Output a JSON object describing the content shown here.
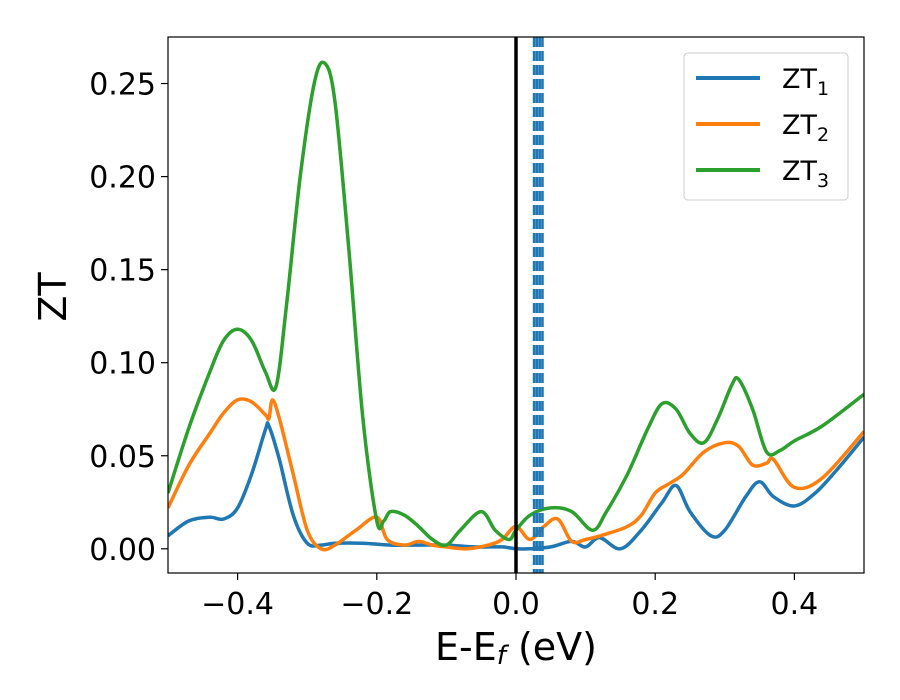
{
  "chart_data": {
    "type": "line",
    "xlabel": "E-E",
    "xlabel_sub": "f",
    "xlabel_unit": " (eV)",
    "ylabel": "ZT",
    "xlim": [
      -0.5,
      0.5
    ],
    "ylim": [
      -0.013,
      0.275
    ],
    "x_ticks": [
      -0.4,
      -0.2,
      0.0,
      0.2,
      0.4
    ],
    "x_tick_labels": [
      "−0.4",
      "−0.2",
      "0.0",
      "0.2",
      "0.4"
    ],
    "y_ticks": [
      0.0,
      0.05,
      0.1,
      0.15,
      0.2,
      0.25
    ],
    "y_tick_labels": [
      "0.00",
      "0.05",
      "0.10",
      "0.15",
      "0.20",
      "0.25"
    ],
    "grid": false,
    "legend_position": "top-right",
    "fermi_line_x": 0.0,
    "dashed_lines_x": [
      0.026,
      0.03,
      0.034,
      0.038
    ],
    "series": [
      {
        "name": "ZT",
        "sub": "1",
        "color": "#1f77b4",
        "x": [
          -0.5,
          -0.47,
          -0.44,
          -0.42,
          -0.4,
          -0.38,
          -0.36,
          -0.355,
          -0.34,
          -0.32,
          -0.3,
          -0.28,
          -0.26,
          -0.22,
          -0.18,
          -0.14,
          -0.1,
          -0.06,
          -0.02,
          0.0,
          0.02,
          0.05,
          0.08,
          0.1,
          0.12,
          0.15,
          0.18,
          0.21,
          0.23,
          0.25,
          0.28,
          0.3,
          0.33,
          0.35,
          0.37,
          0.4,
          0.43,
          0.46,
          0.5
        ],
        "y": [
          0.007,
          0.015,
          0.017,
          0.016,
          0.022,
          0.04,
          0.064,
          0.066,
          0.048,
          0.018,
          0.003,
          0.002,
          0.003,
          0.003,
          0.002,
          0.002,
          0.002,
          0.001,
          0.001,
          0.0,
          0.0,
          0.001,
          0.004,
          0.001,
          0.006,
          0.0,
          0.01,
          0.025,
          0.034,
          0.02,
          0.007,
          0.01,
          0.028,
          0.036,
          0.028,
          0.023,
          0.03,
          0.042,
          0.06
        ]
      },
      {
        "name": "ZT",
        "sub": "2",
        "color": "#ff7f0e",
        "x": [
          -0.5,
          -0.47,
          -0.44,
          -0.42,
          -0.4,
          -0.38,
          -0.36,
          -0.355,
          -0.35,
          -0.34,
          -0.32,
          -0.3,
          -0.28,
          -0.26,
          -0.23,
          -0.2,
          -0.185,
          -0.16,
          -0.14,
          -0.12,
          -0.1,
          -0.07,
          -0.04,
          -0.02,
          0.0,
          0.02,
          0.04,
          0.06,
          0.08,
          0.1,
          0.13,
          0.16,
          0.18,
          0.2,
          0.22,
          0.24,
          0.27,
          0.3,
          0.32,
          0.34,
          0.36,
          0.37,
          0.4,
          0.44,
          0.5
        ],
        "y": [
          0.022,
          0.045,
          0.062,
          0.073,
          0.08,
          0.079,
          0.072,
          0.07,
          0.08,
          0.07,
          0.04,
          0.01,
          0.0,
          0.002,
          0.01,
          0.017,
          0.005,
          0.002,
          0.004,
          0.002,
          0.001,
          0.0,
          0.002,
          0.005,
          0.012,
          0.005,
          0.012,
          0.016,
          0.004,
          0.005,
          0.008,
          0.012,
          0.018,
          0.03,
          0.035,
          0.04,
          0.052,
          0.057,
          0.055,
          0.045,
          0.046,
          0.048,
          0.033,
          0.038,
          0.063
        ]
      },
      {
        "name": "ZT",
        "sub": "3",
        "color": "#2ca02c",
        "x": [
          -0.5,
          -0.47,
          -0.44,
          -0.42,
          -0.4,
          -0.38,
          -0.36,
          -0.345,
          -0.33,
          -0.31,
          -0.29,
          -0.275,
          -0.26,
          -0.24,
          -0.22,
          -0.2,
          -0.19,
          -0.18,
          -0.16,
          -0.14,
          -0.12,
          -0.1,
          -0.08,
          -0.05,
          -0.03,
          -0.01,
          0.0,
          0.02,
          0.05,
          0.08,
          0.11,
          0.13,
          0.16,
          0.19,
          0.21,
          0.23,
          0.25,
          0.27,
          0.29,
          0.31,
          0.32,
          0.34,
          0.36,
          0.38,
          0.4,
          0.44,
          0.5
        ],
        "y": [
          0.03,
          0.065,
          0.095,
          0.112,
          0.118,
          0.112,
          0.095,
          0.087,
          0.13,
          0.2,
          0.25,
          0.261,
          0.24,
          0.16,
          0.07,
          0.015,
          0.015,
          0.02,
          0.018,
          0.012,
          0.005,
          0.002,
          0.01,
          0.02,
          0.01,
          0.005,
          0.01,
          0.018,
          0.022,
          0.02,
          0.01,
          0.02,
          0.04,
          0.065,
          0.078,
          0.075,
          0.062,
          0.057,
          0.07,
          0.088,
          0.091,
          0.075,
          0.052,
          0.053,
          0.058,
          0.066,
          0.083
        ]
      }
    ]
  }
}
